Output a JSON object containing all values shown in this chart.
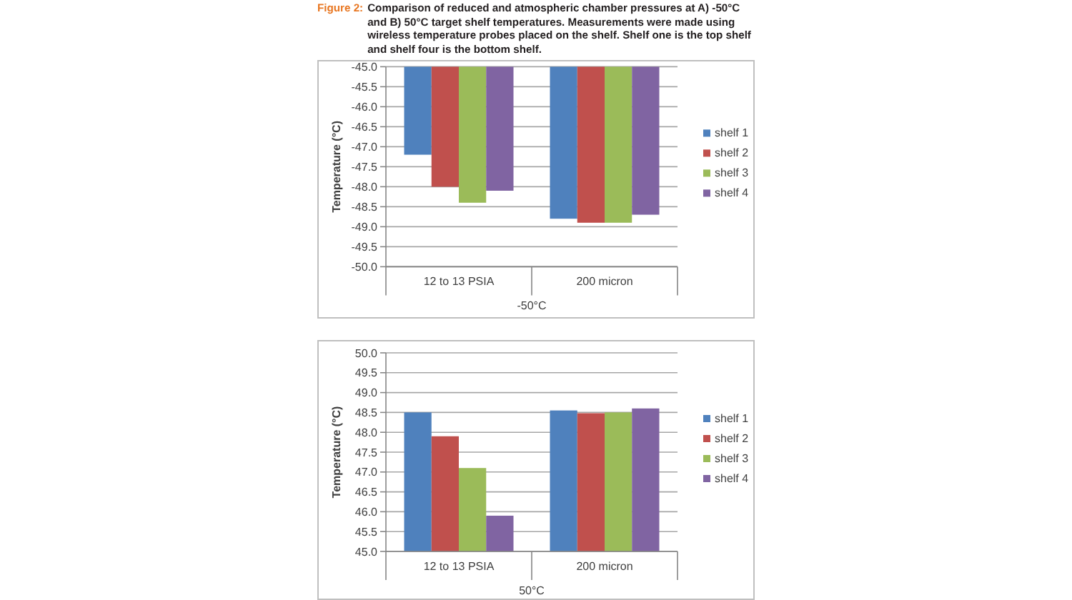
{
  "chart_data": [
    {
      "type": "bar",
      "title": "Figure 2:",
      "subtitle": "Comparison of reduced and atmospheric chamber pressures at A) -50°C and B) 50°C target shelf temperatures. Measurements were made using wireless temperature probes placed on the shelf. Shelf one is the top shelf and shelf four is the bottom shelf.",
      "ylabel": "Temperature (°C)",
      "xlabel": "-50°C",
      "categories": [
        "12 to 13 PSIA",
        "200 micron"
      ],
      "series": [
        {
          "name": "shelf 1",
          "color": "#4f81bd",
          "values": [
            -47.2,
            -48.8
          ]
        },
        {
          "name": "shelf 2",
          "color": "#c0504d",
          "values": [
            -48.0,
            -48.9
          ]
        },
        {
          "name": "shelf 3",
          "color": "#9bbb59",
          "values": [
            -48.4,
            -48.9
          ]
        },
        {
          "name": "shelf 4",
          "color": "#8064a2",
          "values": [
            -48.1,
            -48.7
          ]
        }
      ],
      "ylim": [
        -50,
        -45
      ],
      "yticks": [
        {
          "value": -50,
          "label": "-50.0"
        },
        {
          "value": -49.5,
          "label": "-49.5"
        },
        {
          "value": -49,
          "label": "-49.0"
        },
        {
          "value": -48.5,
          "label": "-48.5"
        },
        {
          "value": -48,
          "label": "-48.0"
        },
        {
          "value": -47.5,
          "label": "-47.5"
        },
        {
          "value": -47,
          "label": "-47.0"
        },
        {
          "value": -46.5,
          "label": "-46.5"
        },
        {
          "value": -46,
          "label": "-46.0"
        },
        {
          "value": -45.5,
          "label": "-45.5"
        },
        {
          "value": -45,
          "label": "-45.0"
        }
      ],
      "grid": "y",
      "legend": "right"
    },
    {
      "type": "bar",
      "ylabel": "Temperature (°C)",
      "xlabel": "50°C",
      "categories": [
        "12 to 13 PSIA",
        "200 micron"
      ],
      "series": [
        {
          "name": "shelf 1",
          "color": "#4f81bd",
          "values": [
            48.5,
            48.55
          ]
        },
        {
          "name": "shelf 2",
          "color": "#c0504d",
          "values": [
            47.9,
            48.48
          ]
        },
        {
          "name": "shelf 3",
          "color": "#9bbb59",
          "values": [
            47.1,
            48.5
          ]
        },
        {
          "name": "shelf 4",
          "color": "#8064a2",
          "values": [
            45.9,
            48.6
          ]
        }
      ],
      "ylim": [
        45,
        50
      ],
      "yticks": [
        {
          "value": 45,
          "label": "45.0"
        },
        {
          "value": 45.5,
          "label": "45.5"
        },
        {
          "value": 46,
          "label": "46.0"
        },
        {
          "value": 46.5,
          "label": "46.5"
        },
        {
          "value": 47,
          "label": "47.0"
        },
        {
          "value": 47.5,
          "label": "47.5"
        },
        {
          "value": 48,
          "label": "48.0"
        },
        {
          "value": 48.5,
          "label": "48.5"
        },
        {
          "value": 49,
          "label": "49.0"
        },
        {
          "value": 49.5,
          "label": "49.5"
        },
        {
          "value": 50,
          "label": "50.0"
        }
      ],
      "grid": "y",
      "legend": "right"
    }
  ]
}
